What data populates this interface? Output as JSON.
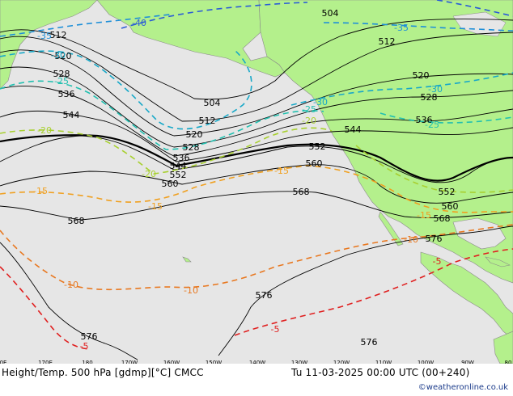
{
  "footer": {
    "left": "Height/Temp. 500 hPa [gdmp][°C] CMCC",
    "right": "Tu 11-03-2025 00:00 UTC (00+240)",
    "credit": "©weatheronline.co.uk"
  },
  "lon_labels": [
    "0E",
    "170E",
    "180",
    "170W",
    "160W",
    "150W",
    "140W",
    "130W",
    "120W",
    "110W",
    "100W",
    "90W",
    "80"
  ],
  "height_labels": [
    "504",
    "504",
    "512",
    "512",
    "512",
    "520",
    "520",
    "520",
    "528",
    "528",
    "528",
    "536",
    "536",
    "536",
    "544",
    "544",
    "544",
    "552",
    "552",
    "552",
    "560",
    "560",
    "560",
    "568",
    "568",
    "568",
    "568",
    "576",
    "576",
    "576",
    "576"
  ],
  "temp_labels": [
    "-40",
    "-35",
    "-35",
    "-30",
    "-30",
    "-30",
    "-25",
    "-25",
    "-25",
    "-20",
    "-20",
    "-20",
    "-15",
    "-15",
    "-15",
    "-15",
    "-10",
    "-10",
    "-10",
    "-5",
    "-5",
    "-5"
  ],
  "colors": {
    "land": "#b4f08c",
    "sea": "#e6e6e6",
    "height_contour": "#000000",
    "temp_minus40": "#2a5bd7",
    "temp_minus35": "#1e8fd8",
    "temp_minus30": "#18a8c8",
    "temp_minus25": "#22c0b0",
    "temp_minus20": "#a8d030",
    "temp_minus15": "#f0a020",
    "temp_minus10": "#e87820",
    "temp_minus5": "#e02020"
  }
}
